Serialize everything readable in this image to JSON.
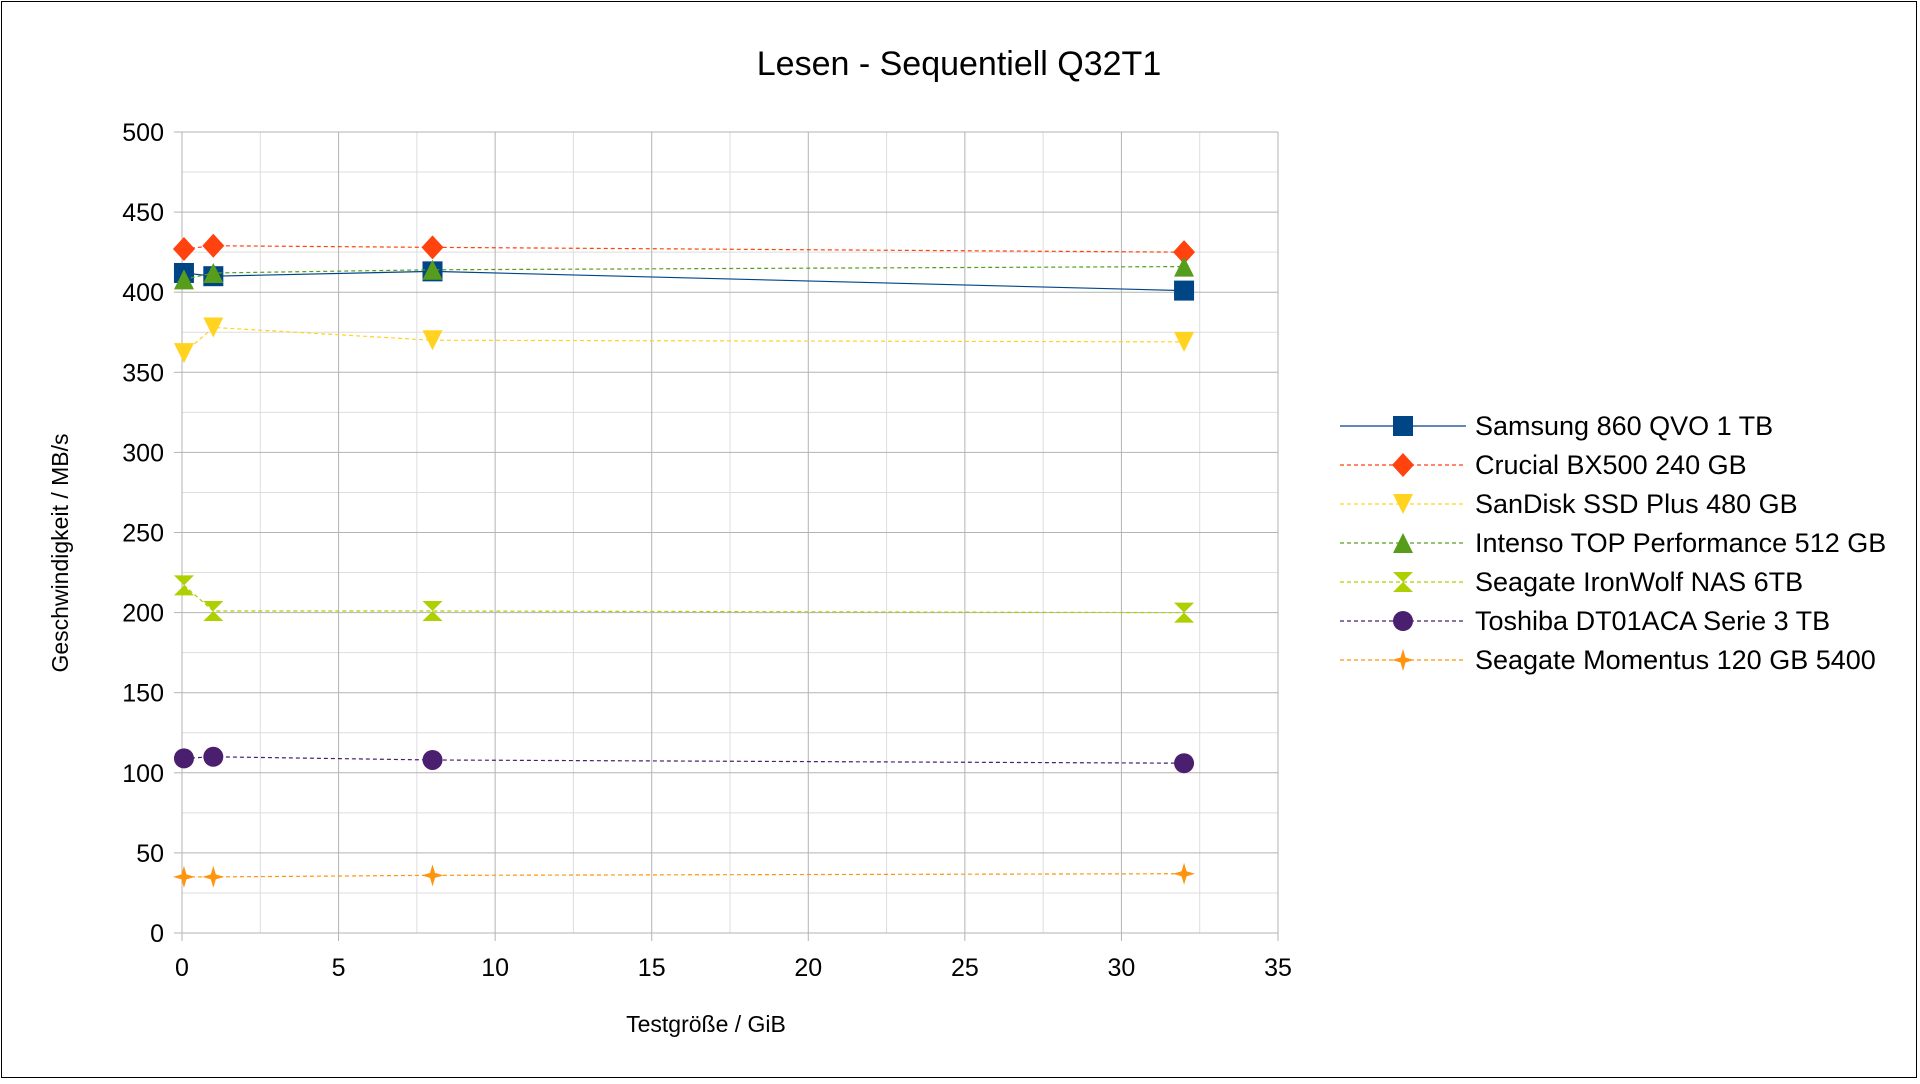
{
  "chart_data": {
    "type": "line",
    "title": "Lesen - Sequentiell Q32T1",
    "xlabel": "Testgröße / GiB",
    "ylabel": "Geschwindigkeit / MB/s",
    "xlim": [
      0,
      35
    ],
    "ylim": [
      0,
      500
    ],
    "x_ticks": [
      0,
      5,
      10,
      15,
      20,
      25,
      30,
      35
    ],
    "y_ticks": [
      0,
      50,
      100,
      150,
      200,
      250,
      300,
      350,
      400,
      450,
      500
    ],
    "grid": true,
    "legend_position": "right",
    "series": [
      {
        "name": "Samsung 860 QVO 1 TB",
        "color": "#004586",
        "marker": "square",
        "dash": "solid",
        "x": [
          0.0625,
          1,
          8,
          32
        ],
        "values": [
          412,
          410,
          413,
          401
        ]
      },
      {
        "name": "Crucial BX500 240 GB",
        "color": "#ff420e",
        "marker": "diamond",
        "dash": "dashed",
        "x": [
          0.0625,
          1,
          8,
          32
        ],
        "values": [
          427,
          429,
          428,
          425
        ]
      },
      {
        "name": "SanDisk SSD Plus 480 GB",
        "color": "#ffd320",
        "marker": "triangle-down",
        "dash": "dashed",
        "x": [
          0.0625,
          1,
          8,
          32
        ],
        "values": [
          362,
          378,
          370,
          369
        ]
      },
      {
        "name": "Intenso  TOP Performance 512 GB",
        "color": "#579d1c",
        "marker": "triangle-up",
        "dash": "dashed",
        "x": [
          0.0625,
          1,
          8,
          32
        ],
        "values": [
          408,
          412,
          414,
          416
        ]
      },
      {
        "name": "Seagate IronWolf NAS 6TB",
        "color": "#aecf00",
        "marker": "hourglass",
        "dash": "dashed",
        "x": [
          0.0625,
          1,
          8,
          32
        ],
        "values": [
          217,
          201,
          201,
          200
        ]
      },
      {
        "name": "Toshiba DT01ACA Serie 3 TB",
        "color": "#4b1f6f",
        "marker": "circle",
        "dash": "dashed",
        "x": [
          0.0625,
          1,
          8,
          32
        ],
        "values": [
          109,
          110,
          108,
          106
        ]
      },
      {
        "name": "Seagate Momentus 120 GB 5400",
        "color": "#ff950e",
        "marker": "star",
        "dash": "dashed",
        "x": [
          0.0625,
          1,
          8,
          32
        ],
        "values": [
          35,
          35,
          36,
          37
        ]
      }
    ]
  }
}
